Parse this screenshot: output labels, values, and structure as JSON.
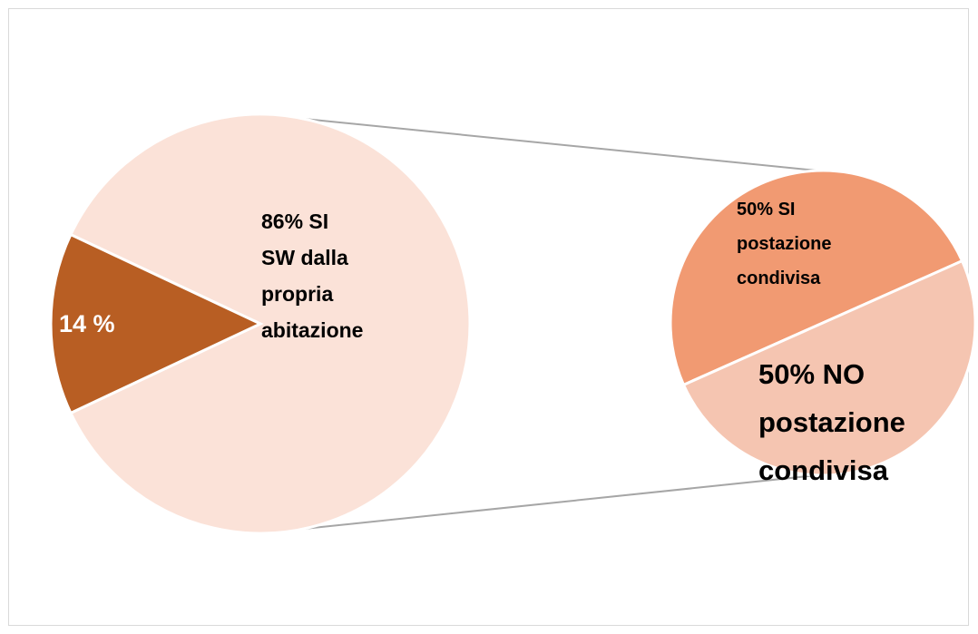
{
  "chart_data": {
    "type": "pie",
    "variant": "pie-of-pie",
    "main_pie": {
      "slices": [
        {
          "label_lines": [
            "86% SI",
            "SW dalla",
            "propria",
            "abitazione"
          ],
          "value": 86,
          "color": "#fbe2d8"
        },
        {
          "label_lines": [
            "14 %"
          ],
          "value": 14,
          "color": "#b85e23"
        }
      ]
    },
    "secondary_pie": {
      "expands_slice_index": 0,
      "slices": [
        {
          "label_lines": [
            "50% SI",
            "postazione",
            "condivisa"
          ],
          "value": 50,
          "color": "#f19a72"
        },
        {
          "label_lines": [
            "50% NO",
            "postazione",
            "condivisa"
          ],
          "value": 50,
          "color": "#f5c5b1"
        }
      ]
    },
    "connector_color": "#a6a6a6",
    "legend": "none"
  }
}
